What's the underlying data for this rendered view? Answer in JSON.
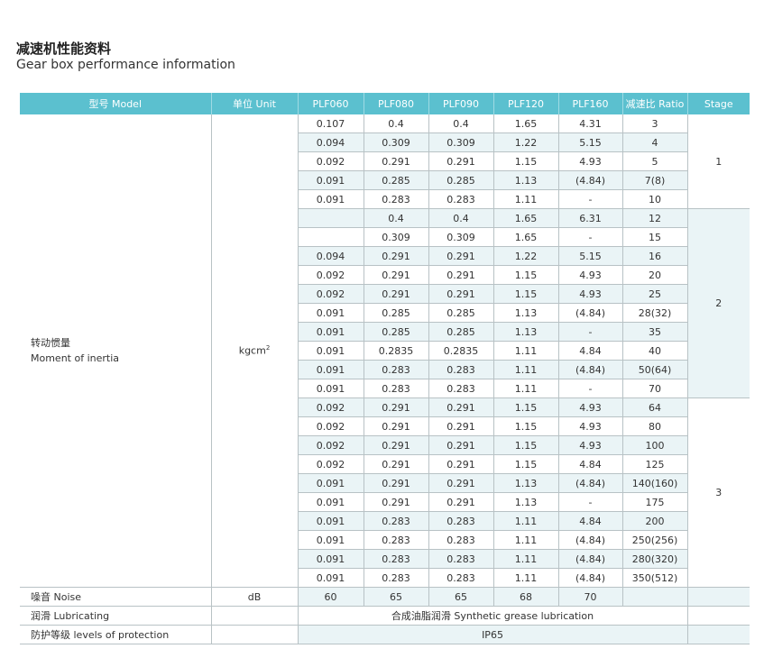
{
  "title_cn": "减速机性能资料",
  "title_en": "Gear box performance information",
  "header": [
    "型号 Model",
    "单位 Unit",
    "PLF060",
    "PLF080",
    "PLF090",
    "PLF120",
    "PLF160",
    "减速比 Ratio",
    "Stage"
  ],
  "accent_color": "#5bc0cf",
  "inertia": {
    "label_cn": "转动惯量",
    "label_en": "Moment of inertia",
    "unit": "kgcm",
    "unit_sup": "2",
    "stages": [
      {
        "stage": "1",
        "rows": [
          [
            "0.107",
            "0.4",
            "0.4",
            "1.65",
            "4.31",
            "3"
          ],
          [
            "0.094",
            "0.309",
            "0.309",
            "1.22",
            "5.15",
            "4"
          ],
          [
            "0.092",
            "0.291",
            "0.291",
            "1.15",
            "4.93",
            "5"
          ],
          [
            "0.091",
            "0.285",
            "0.285",
            "1.13",
            "(4.84)",
            "7(8)"
          ],
          [
            "0.091",
            "0.283",
            "0.283",
            "1.11",
            "-",
            "10"
          ]
        ]
      },
      {
        "stage": "2",
        "rows": [
          [
            "",
            "0.4",
            "0.4",
            "1.65",
            "6.31",
            "12"
          ],
          [
            "",
            "0.309",
            "0.309",
            "1.65",
            "-",
            "15"
          ],
          [
            "0.094",
            "0.291",
            "0.291",
            "1.22",
            "5.15",
            "16"
          ],
          [
            "0.092",
            "0.291",
            "0.291",
            "1.15",
            "4.93",
            "20"
          ],
          [
            "0.092",
            "0.291",
            "0.291",
            "1.15",
            "4.93",
            "25"
          ],
          [
            "0.091",
            "0.285",
            "0.285",
            "1.13",
            "(4.84)",
            "28(32)"
          ],
          [
            "0.091",
            "0.285",
            "0.285",
            "1.13",
            "-",
            "35"
          ],
          [
            "0.091",
            "0.2835",
            "0.2835",
            "1.11",
            "4.84",
            "40"
          ],
          [
            "0.091",
            "0.283",
            "0.283",
            "1.11",
            "(4.84)",
            "50(64)"
          ],
          [
            "0.091",
            "0.283",
            "0.283",
            "1.11",
            "-",
            "70"
          ]
        ]
      },
      {
        "stage": "3",
        "rows": [
          [
            "0.092",
            "0.291",
            "0.291",
            "1.15",
            "4.93",
            "64"
          ],
          [
            "0.092",
            "0.291",
            "0.291",
            "1.15",
            "4.93",
            "80"
          ],
          [
            "0.092",
            "0.291",
            "0.291",
            "1.15",
            "4.93",
            "100"
          ],
          [
            "0.092",
            "0.291",
            "0.291",
            "1.15",
            "4.84",
            "125"
          ],
          [
            "0.091",
            "0.291",
            "0.291",
            "1.13",
            "(4.84)",
            "140(160)"
          ],
          [
            "0.091",
            "0.291",
            "0.291",
            "1.13",
            "-",
            "175"
          ],
          [
            "0.091",
            "0.283",
            "0.283",
            "1.11",
            "4.84",
            "200"
          ],
          [
            "0.091",
            "0.283",
            "0.283",
            "1.11",
            "(4.84)",
            "250(256)"
          ],
          [
            "0.091",
            "0.283",
            "0.283",
            "1.11",
            "(4.84)",
            "280(320)"
          ],
          [
            "0.091",
            "0.283",
            "0.283",
            "1.11",
            "(4.84)",
            "350(512)"
          ]
        ]
      }
    ]
  },
  "noise": {
    "label": "噪音 Noise",
    "unit": "dB",
    "values": [
      "60",
      "65",
      "65",
      "68",
      "70",
      ""
    ]
  },
  "lubricating": {
    "label": "润滑 Lubricating",
    "value": "合成油脂润滑 Synthetic grease lubrication"
  },
  "protection": {
    "label": "防护等级 levels of protection",
    "value": "IP65"
  }
}
